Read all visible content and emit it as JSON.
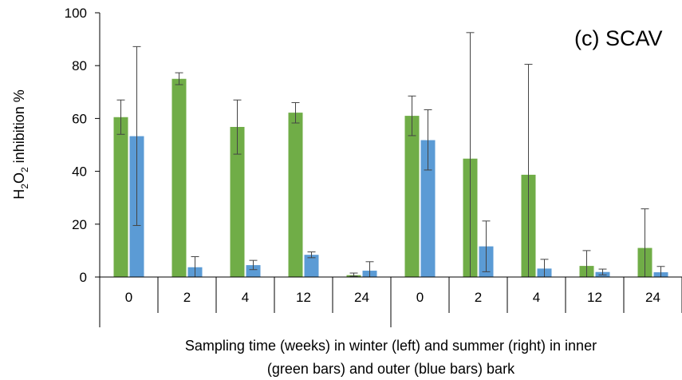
{
  "chart_data": {
    "type": "bar",
    "title": "(c) SCAV",
    "ylabel": {
      "prefix": "H",
      "sub1": "2",
      "mid": "O",
      "sub2": "2",
      "suffix": " inhibition %"
    },
    "xlabel_lines": [
      "Sampling time (weeks) in winter (left) and summer (right) in inner",
      "(green bars) and outer (blue bars) bark"
    ],
    "categories": [
      "0",
      "2",
      "4",
      "12",
      "24",
      "0",
      "2",
      "4",
      "12",
      "24"
    ],
    "ylim": [
      0,
      100
    ],
    "yticks": [
      "0",
      "20",
      "40",
      "60",
      "80",
      "100"
    ],
    "grid": false,
    "series": [
      {
        "color": "#70AD47",
        "values": [
          60.5,
          75.0,
          56.8,
          62.2,
          0.7,
          61.0,
          44.8,
          38.7,
          4.2,
          11.0
        ],
        "err_low": [
          54.0,
          72.8,
          46.5,
          58.3,
          0.3,
          53.5,
          0.0,
          0.0,
          0.0,
          0.0
        ],
        "err_high": [
          67.0,
          77.3,
          67.0,
          66.0,
          1.5,
          68.5,
          92.5,
          80.5,
          10.0,
          25.8
        ]
      },
      {
        "color": "#5B9BD5",
        "values": [
          53.3,
          3.7,
          4.5,
          8.4,
          2.4,
          51.8,
          11.6,
          3.2,
          1.9,
          1.8
        ],
        "err_low": [
          19.5,
          0.0,
          2.8,
          7.3,
          0.0,
          40.5,
          2.0,
          0.0,
          0.8,
          0.0
        ],
        "err_high": [
          87.2,
          7.7,
          6.3,
          9.5,
          5.8,
          63.3,
          21.2,
          6.7,
          3.0,
          4.0
        ]
      }
    ]
  }
}
